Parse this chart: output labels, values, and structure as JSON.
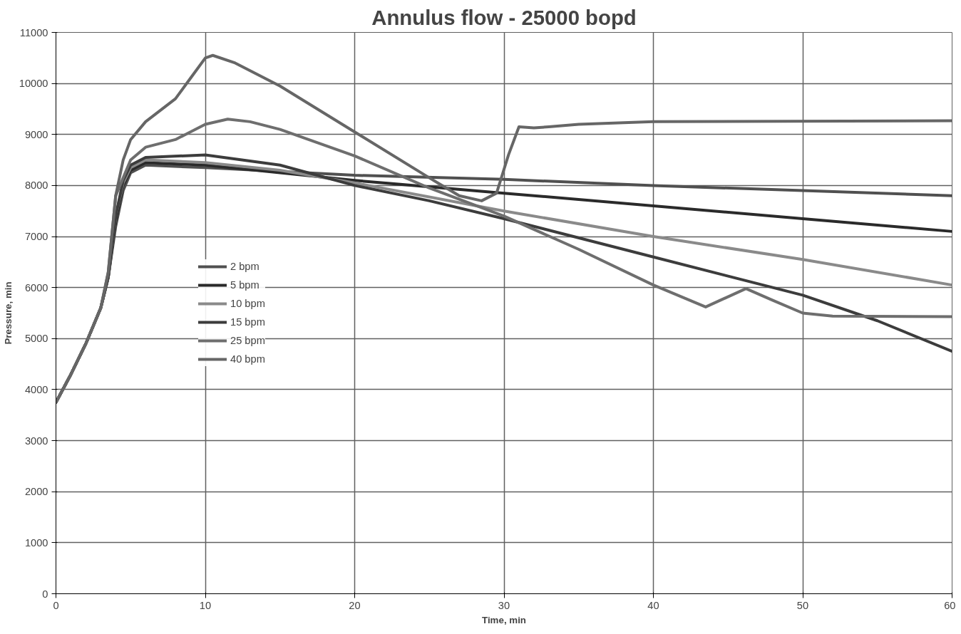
{
  "chart_data": {
    "type": "line",
    "title": "Annulus flow - 25000 bopd",
    "xlabel": "Time, min",
    "ylabel": "Pressure, min",
    "xlim": [
      0,
      60
    ],
    "xticks": [
      0,
      10,
      20,
      30,
      40,
      50,
      60
    ],
    "ylim": [
      0,
      11000
    ],
    "yticks": [
      0,
      1000,
      2000,
      3000,
      4000,
      5000,
      6000,
      7000,
      8000,
      9000,
      10000,
      11000
    ],
    "grid": true,
    "legend": "left",
    "line_style": "solid",
    "series": [
      {
        "name": "2 bpm",
        "color": "#505050",
        "x": [
          0,
          1,
          2,
          3,
          3.5,
          4,
          4.5,
          5,
          6,
          10,
          20,
          30,
          40,
          50,
          60
        ],
        "values": [
          3750,
          4300,
          4900,
          5600,
          6200,
          7200,
          7900,
          8250,
          8400,
          8350,
          8200,
          8120,
          8000,
          7900,
          7800
        ]
      },
      {
        "name": "5 bpm",
        "color": "#2a2a2a",
        "x": [
          0,
          1,
          2,
          3,
          3.5,
          4,
          4.5,
          5,
          6,
          10,
          20,
          30,
          40,
          50,
          60
        ],
        "values": [
          3750,
          4300,
          4900,
          5600,
          6200,
          7300,
          8000,
          8300,
          8450,
          8400,
          8100,
          7850,
          7600,
          7350,
          7100
        ]
      },
      {
        "name": "10 bpm",
        "color": "#8a8a8a",
        "x": [
          0,
          1,
          2,
          3,
          3.5,
          4,
          4.5,
          5,
          6,
          10,
          15,
          20,
          30,
          40,
          50,
          60
        ],
        "values": [
          3750,
          4300,
          4900,
          5600,
          6200,
          7400,
          8050,
          8350,
          8500,
          8450,
          8300,
          8050,
          7500,
          7000,
          6550,
          6050
        ]
      },
      {
        "name": "15 bpm",
        "color": "#3c3c3c",
        "x": [
          0,
          1,
          2,
          3,
          3.5,
          4,
          4.5,
          5,
          6,
          10,
          15,
          20,
          25,
          30,
          40,
          50,
          55,
          60
        ],
        "values": [
          3750,
          4300,
          4900,
          5600,
          6200,
          7400,
          8100,
          8400,
          8550,
          8600,
          8400,
          8000,
          7700,
          7350,
          6600,
          5850,
          5350,
          4750
        ]
      },
      {
        "name": "25 bpm",
        "color": "#6e6e6e",
        "x": [
          0,
          1,
          2,
          3,
          3.5,
          4,
          5,
          6,
          8,
          9,
          10,
          11.5,
          13,
          15,
          20,
          25,
          30,
          35,
          40,
          43.5,
          46.2,
          48,
          50,
          52,
          60
        ],
        "values": [
          3750,
          4300,
          4900,
          5600,
          6300,
          7800,
          8500,
          8750,
          8900,
          9050,
          9200,
          9300,
          9250,
          9100,
          8580,
          7950,
          7400,
          6750,
          6050,
          5620,
          5980,
          5750,
          5500,
          5440,
          5430
        ]
      },
      {
        "name": "40 bpm",
        "color": "#666666",
        "x": [
          0,
          1,
          2,
          3,
          3.5,
          4,
          4.5,
          5,
          6,
          8,
          9,
          10,
          10.5,
          12,
          15,
          20,
          25,
          27,
          28.5,
          29.5,
          30.3,
          31,
          32,
          33,
          35,
          40,
          60
        ],
        "values": [
          3750,
          4300,
          4900,
          5600,
          6300,
          7800,
          8500,
          8900,
          9250,
          9700,
          10100,
          10500,
          10550,
          10400,
          9950,
          9050,
          8150,
          7800,
          7700,
          7850,
          8600,
          9150,
          9130,
          9150,
          9200,
          9250,
          9270
        ]
      }
    ]
  }
}
